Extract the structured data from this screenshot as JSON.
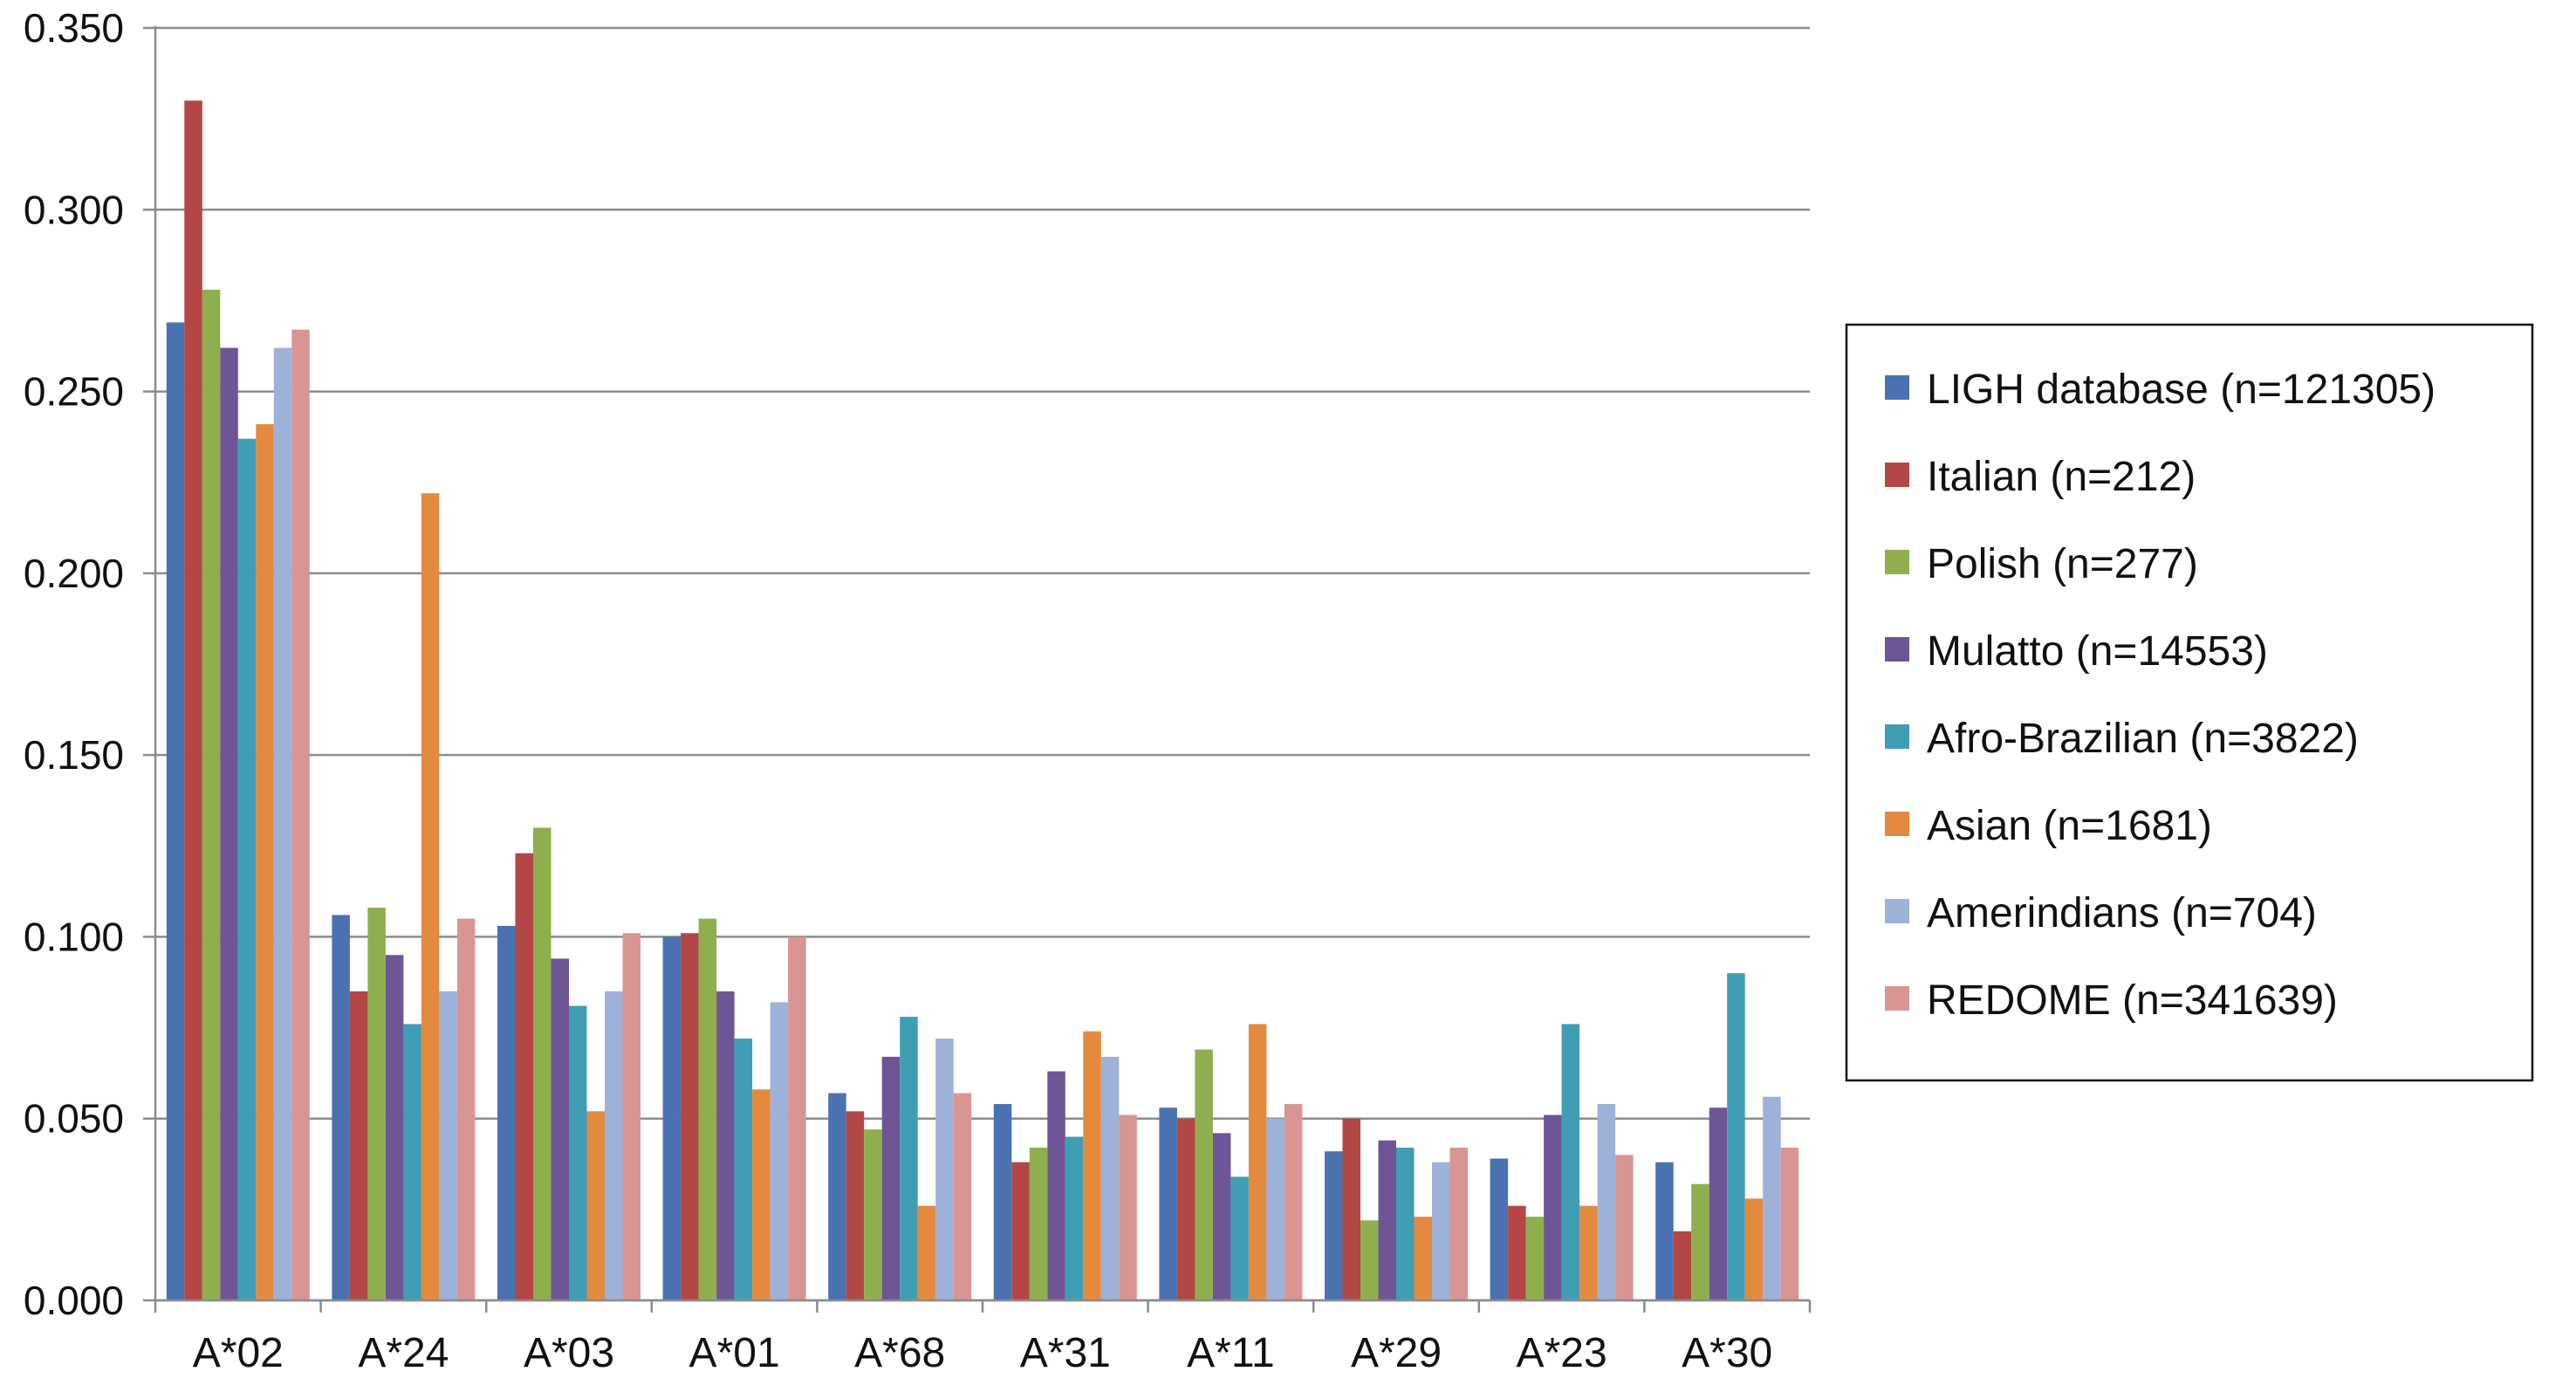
{
  "chart_data": {
    "type": "bar",
    "title": "",
    "xlabel": "",
    "ylabel": "",
    "ylim": [
      0,
      0.35
    ],
    "yticks": [
      "0.000",
      "0.050",
      "0.100",
      "0.150",
      "0.200",
      "0.250",
      "0.300",
      "0.350"
    ],
    "grid": "horizontal",
    "legend_position": "right",
    "categories": [
      "A*02",
      "A*24",
      "A*03",
      "A*01",
      "A*68",
      "A*31",
      "A*11",
      "A*29",
      "A*23",
      "A*30"
    ],
    "series": [
      {
        "name": "LIGH database (n=121305)",
        "color": "#4a72b0",
        "values": [
          0.269,
          0.106,
          0.103,
          0.1,
          0.057,
          0.054,
          0.053,
          0.041,
          0.039,
          0.038
        ]
      },
      {
        "name": "Italian (n=212)",
        "color": "#b24745",
        "values": [
          0.33,
          0.085,
          0.123,
          0.101,
          0.052,
          0.038,
          0.05,
          0.05,
          0.026,
          0.019
        ]
      },
      {
        "name": "Polish (n=277)",
        "color": "#8fae4e",
        "values": [
          0.278,
          0.108,
          0.13,
          0.105,
          0.047,
          0.042,
          0.069,
          0.022,
          0.023,
          0.032
        ]
      },
      {
        "name": "Mulatto (n=14553)",
        "color": "#6e5596",
        "values": [
          0.262,
          0.095,
          0.094,
          0.085,
          0.067,
          0.063,
          0.046,
          0.044,
          0.051,
          0.053
        ]
      },
      {
        "name": "Afro-Brazilian (n=3822)",
        "color": "#3f9eb4",
        "values": [
          0.237,
          0.076,
          0.081,
          0.072,
          0.078,
          0.045,
          0.034,
          0.042,
          0.076,
          0.09
        ]
      },
      {
        "name": "Asian (n=1681)",
        "color": "#e38a3f",
        "values": [
          0.241,
          0.222,
          0.052,
          0.058,
          0.026,
          0.074,
          0.076,
          0.023,
          0.026,
          0.028
        ]
      },
      {
        "name": "Amerindians (n=704)",
        "color": "#9eb1d8",
        "values": [
          0.262,
          0.085,
          0.085,
          0.082,
          0.072,
          0.067,
          0.05,
          0.038,
          0.054,
          0.056
        ]
      },
      {
        "name": "REDOME (n=341639)",
        "color": "#d99594",
        "values": [
          0.267,
          0.105,
          0.101,
          0.1,
          0.057,
          0.051,
          0.054,
          0.042,
          0.04,
          0.042
        ]
      }
    ]
  }
}
